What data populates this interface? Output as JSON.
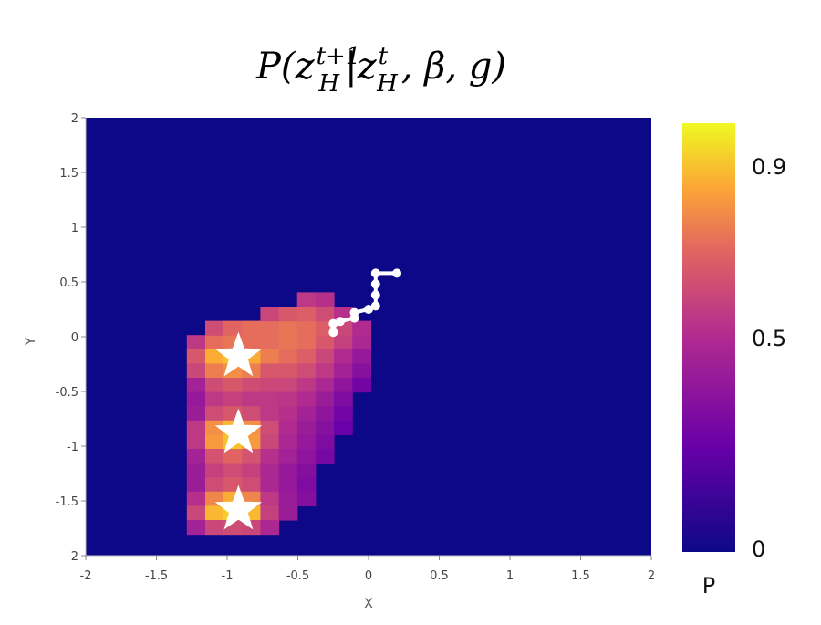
{
  "chart_data": {
    "type": "heatmap",
    "title": {
      "pre": "P(z",
      "sup1": "t+1",
      "sub1": "H",
      "mid": "|z",
      "sup2": "t",
      "sub2": "H",
      "post": ", β, g)"
    },
    "xlabel": "X",
    "ylabel": "Y",
    "xlim": [
      -2,
      2
    ],
    "ylim": [
      -2,
      2
    ],
    "xticks": [
      -2,
      -1.5,
      -1,
      -0.5,
      0,
      0.5,
      1,
      1.5,
      2
    ],
    "xtick_labels": [
      "-2",
      "-1.5",
      "-1",
      "-0.5",
      "0",
      "0.5",
      "1",
      "1.5",
      "2"
    ],
    "yticks": [
      2,
      1.5,
      1,
      0.5,
      0,
      -0.5,
      -1,
      -1.5,
      -2
    ],
    "ytick_labels": [
      "2",
      "1.5",
      "1",
      "0.5",
      "0",
      "-0.5",
      "-1",
      "-1.5",
      "-2"
    ],
    "colormap": "plasma",
    "background_color": "#0d0887",
    "colorbar": {
      "label": "P",
      "ticks": [
        0.9,
        0.5,
        0
      ],
      "tick_labels": [
        "0.9",
        "0.5",
        "0"
      ],
      "range": [
        0,
        1
      ]
    },
    "goals": [
      {
        "x": -0.92,
        "y": -0.18
      },
      {
        "x": -0.92,
        "y": -0.88
      },
      {
        "x": -0.92,
        "y": -1.58
      }
    ],
    "trajectory": [
      {
        "x": 0.2,
        "y": 0.58
      },
      {
        "x": 0.05,
        "y": 0.58
      },
      {
        "x": 0.05,
        "y": 0.48
      },
      {
        "x": 0.05,
        "y": 0.38
      },
      {
        "x": 0.05,
        "y": 0.28
      },
      {
        "x": 0.0,
        "y": 0.25
      },
      {
        "x": -0.1,
        "y": 0.22
      },
      {
        "x": -0.1,
        "y": 0.17
      },
      {
        "x": -0.2,
        "y": 0.14
      },
      {
        "x": -0.25,
        "y": 0.12
      },
      {
        "x": -0.25,
        "y": 0.04
      }
    ],
    "grid_spacing": 0.13,
    "cells": [
      [
        -1.22,
        -0.05,
        0.55
      ],
      [
        -1.09,
        -0.05,
        0.72
      ],
      [
        -0.96,
        -0.05,
        0.74
      ],
      [
        -0.83,
        -0.05,
        0.72
      ],
      [
        -0.7,
        -0.05,
        0.72
      ],
      [
        -0.57,
        -0.05,
        0.74
      ],
      [
        -0.44,
        -0.05,
        0.72
      ],
      [
        -0.31,
        -0.05,
        0.66
      ],
      [
        -0.18,
        -0.05,
        0.58
      ],
      [
        -0.05,
        -0.05,
        0.48
      ],
      [
        -1.09,
        0.08,
        0.62
      ],
      [
        -0.96,
        0.08,
        0.7
      ],
      [
        -0.83,
        0.08,
        0.72
      ],
      [
        -0.7,
        0.08,
        0.72
      ],
      [
        -0.57,
        0.08,
        0.74
      ],
      [
        -0.44,
        0.08,
        0.72
      ],
      [
        -0.31,
        0.08,
        0.68
      ],
      [
        -0.18,
        0.08,
        0.6
      ],
      [
        -0.05,
        0.08,
        0.5
      ],
      [
        -0.7,
        0.21,
        0.6
      ],
      [
        -0.57,
        0.21,
        0.66
      ],
      [
        -0.44,
        0.21,
        0.68
      ],
      [
        -0.31,
        0.21,
        0.62
      ],
      [
        -0.18,
        0.21,
        0.52
      ],
      [
        -0.44,
        0.34,
        0.55
      ],
      [
        -0.31,
        0.34,
        0.52
      ],
      [
        -1.22,
        -0.18,
        0.66
      ],
      [
        -1.09,
        -0.18,
        0.86
      ],
      [
        -0.96,
        -0.18,
        0.9
      ],
      [
        -0.83,
        -0.18,
        0.86
      ],
      [
        -0.7,
        -0.18,
        0.76
      ],
      [
        -0.57,
        -0.18,
        0.72
      ],
      [
        -0.44,
        -0.18,
        0.68
      ],
      [
        -0.31,
        -0.18,
        0.6
      ],
      [
        -0.18,
        -0.18,
        0.5
      ],
      [
        -0.05,
        -0.18,
        0.4
      ],
      [
        -1.22,
        -0.31,
        0.6
      ],
      [
        -1.09,
        -0.31,
        0.76
      ],
      [
        -0.96,
        -0.31,
        0.8
      ],
      [
        -0.83,
        -0.31,
        0.76
      ],
      [
        -0.7,
        -0.31,
        0.66
      ],
      [
        -0.57,
        -0.31,
        0.66
      ],
      [
        -0.44,
        -0.31,
        0.62
      ],
      [
        -0.31,
        -0.31,
        0.55
      ],
      [
        -0.18,
        -0.31,
        0.45
      ],
      [
        -0.05,
        -0.31,
        0.35
      ],
      [
        -1.22,
        -0.44,
        0.45
      ],
      [
        -1.09,
        -0.44,
        0.62
      ],
      [
        -0.96,
        -0.44,
        0.66
      ],
      [
        -0.83,
        -0.44,
        0.62
      ],
      [
        -0.7,
        -0.44,
        0.6
      ],
      [
        -0.57,
        -0.44,
        0.6
      ],
      [
        -0.44,
        -0.44,
        0.55
      ],
      [
        -0.31,
        -0.44,
        0.48
      ],
      [
        -0.18,
        -0.44,
        0.38
      ],
      [
        -0.05,
        -0.44,
        0.28
      ],
      [
        -1.22,
        -0.57,
        0.4
      ],
      [
        -1.09,
        -0.57,
        0.55
      ],
      [
        -0.96,
        -0.57,
        0.58
      ],
      [
        -0.83,
        -0.57,
        0.55
      ],
      [
        -0.7,
        -0.57,
        0.55
      ],
      [
        -0.57,
        -0.57,
        0.54
      ],
      [
        -0.44,
        -0.57,
        0.5
      ],
      [
        -0.31,
        -0.57,
        0.42
      ],
      [
        -0.18,
        -0.57,
        0.32
      ],
      [
        -1.22,
        -0.7,
        0.42
      ],
      [
        -1.09,
        -0.7,
        0.62
      ],
      [
        -0.96,
        -0.7,
        0.66
      ],
      [
        -0.83,
        -0.7,
        0.62
      ],
      [
        -0.7,
        -0.7,
        0.55
      ],
      [
        -0.57,
        -0.7,
        0.52
      ],
      [
        -0.44,
        -0.7,
        0.45
      ],
      [
        -0.31,
        -0.7,
        0.38
      ],
      [
        -0.18,
        -0.7,
        0.28
      ],
      [
        -1.22,
        -0.83,
        0.55
      ],
      [
        -1.09,
        -0.83,
        0.8
      ],
      [
        -0.96,
        -0.83,
        0.88
      ],
      [
        -0.83,
        -0.83,
        0.8
      ],
      [
        -0.7,
        -0.83,
        0.62
      ],
      [
        -0.57,
        -0.83,
        0.5
      ],
      [
        -0.44,
        -0.83,
        0.42
      ],
      [
        -0.31,
        -0.83,
        0.35
      ],
      [
        -0.18,
        -0.83,
        0.25
      ],
      [
        -1.22,
        -0.96,
        0.55
      ],
      [
        -1.09,
        -0.96,
        0.82
      ],
      [
        -0.96,
        -0.96,
        0.9
      ],
      [
        -0.83,
        -0.96,
        0.82
      ],
      [
        -0.7,
        -0.96,
        0.6
      ],
      [
        -0.57,
        -0.96,
        0.48
      ],
      [
        -0.44,
        -0.96,
        0.4
      ],
      [
        -0.31,
        -0.96,
        0.32
      ],
      [
        -1.22,
        -1.09,
        0.45
      ],
      [
        -1.09,
        -1.09,
        0.64
      ],
      [
        -0.96,
        -1.09,
        0.7
      ],
      [
        -0.83,
        -1.09,
        0.64
      ],
      [
        -0.7,
        -1.09,
        0.52
      ],
      [
        -0.57,
        -1.09,
        0.45
      ],
      [
        -0.44,
        -1.09,
        0.38
      ],
      [
        -0.31,
        -1.09,
        0.3
      ],
      [
        -1.22,
        -1.22,
        0.42
      ],
      [
        -1.09,
        -1.22,
        0.58
      ],
      [
        -0.96,
        -1.22,
        0.62
      ],
      [
        -0.83,
        -1.22,
        0.58
      ],
      [
        -0.7,
        -1.22,
        0.48
      ],
      [
        -0.57,
        -1.22,
        0.4
      ],
      [
        -0.44,
        -1.22,
        0.34
      ],
      [
        -1.22,
        -1.35,
        0.42
      ],
      [
        -1.09,
        -1.35,
        0.62
      ],
      [
        -0.96,
        -1.35,
        0.66
      ],
      [
        -0.83,
        -1.35,
        0.62
      ],
      [
        -0.7,
        -1.35,
        0.48
      ],
      [
        -0.57,
        -1.35,
        0.4
      ],
      [
        -0.44,
        -1.35,
        0.32
      ],
      [
        -1.22,
        -1.48,
        0.52
      ],
      [
        -1.09,
        -1.48,
        0.78
      ],
      [
        -0.96,
        -1.48,
        0.86
      ],
      [
        -0.83,
        -1.48,
        0.78
      ],
      [
        -0.7,
        -1.48,
        0.55
      ],
      [
        -0.57,
        -1.48,
        0.42
      ],
      [
        -0.44,
        -1.48,
        0.34
      ],
      [
        -1.22,
        -1.61,
        0.6
      ],
      [
        -1.09,
        -1.61,
        0.88
      ],
      [
        -0.96,
        -1.61,
        0.92
      ],
      [
        -0.83,
        -1.61,
        0.88
      ],
      [
        -0.7,
        -1.61,
        0.58
      ],
      [
        -0.57,
        -1.61,
        0.42
      ],
      [
        -1.22,
        -1.74,
        0.45
      ],
      [
        -1.09,
        -1.74,
        0.6
      ],
      [
        -0.96,
        -1.74,
        0.62
      ],
      [
        -0.83,
        -1.74,
        0.6
      ],
      [
        -0.7,
        -1.74,
        0.48
      ]
    ]
  }
}
